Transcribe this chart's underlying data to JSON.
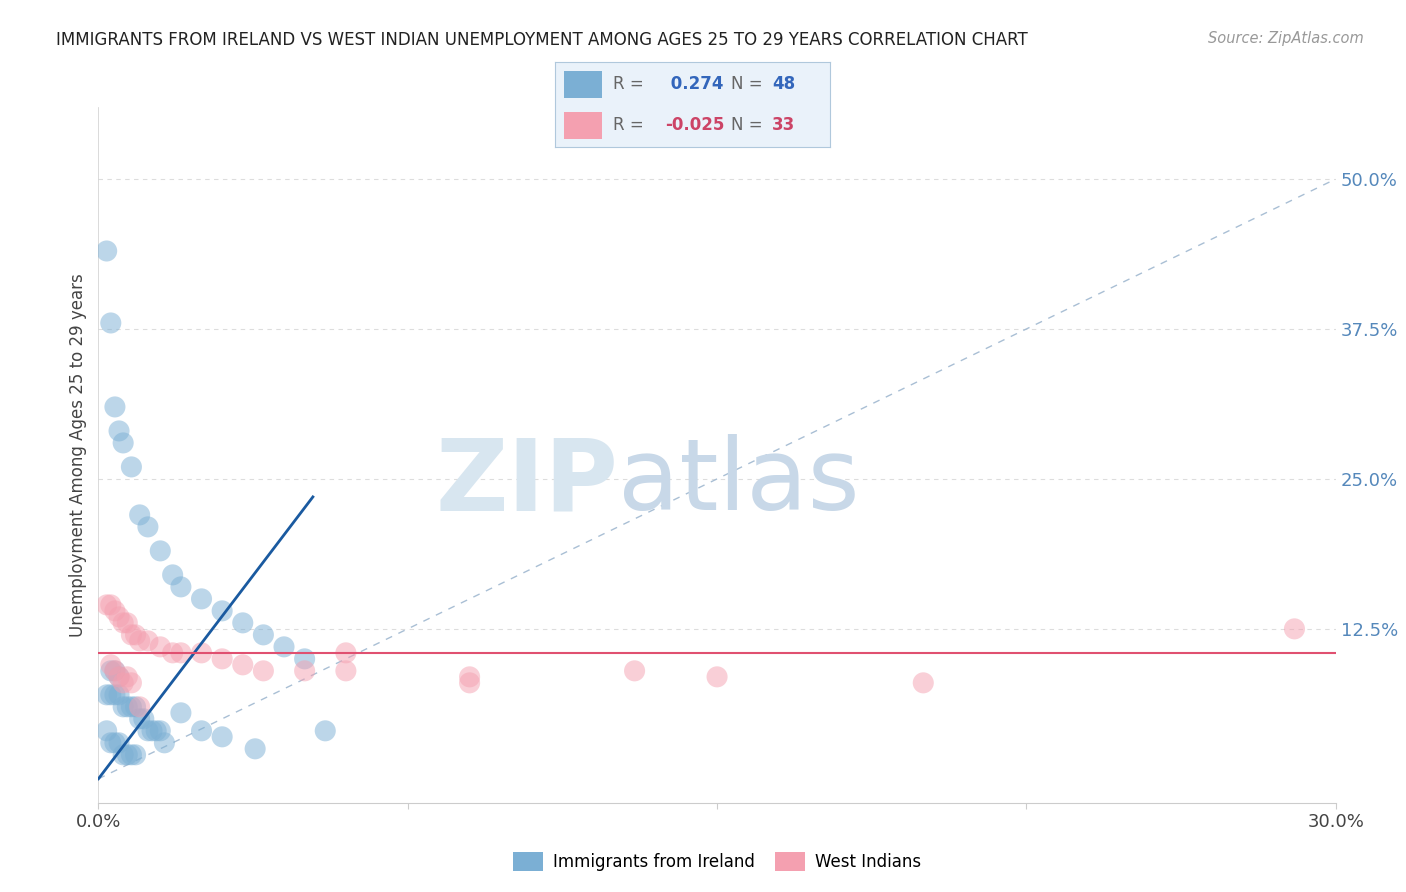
{
  "title": "IMMIGRANTS FROM IRELAND VS WEST INDIAN UNEMPLOYMENT AMONG AGES 25 TO 29 YEARS CORRELATION CHART",
  "source": "Source: ZipAtlas.com",
  "ylabel": "Unemployment Among Ages 25 to 29 years",
  "xlim": [
    0.0,
    0.3
  ],
  "ylim": [
    -0.02,
    0.56
  ],
  "ireland_R": 0.274,
  "ireland_N": 48,
  "westindian_R": -0.025,
  "westindian_N": 33,
  "ireland_color": "#7BAFD4",
  "westindian_color": "#F4A0B0",
  "ireland_line_color": "#1A5AA0",
  "westindian_line_color": "#E05070",
  "diagonal_line_color": "#A0B8D0",
  "watermark_zip_color": "#D8E6F0",
  "watermark_atlas_color": "#C8D8E8",
  "legend_box_color": "#EAF2FA",
  "legend_border_color": "#B0C8DC",
  "background_color": "#FFFFFF",
  "grid_color": "#DDDDDD",
  "right_tick_color": "#5588BB",
  "ireland_x": [
    0.002,
    0.003,
    0.004,
    0.005,
    0.006,
    0.008,
    0.01,
    0.012,
    0.015,
    0.018,
    0.02,
    0.025,
    0.03,
    0.035,
    0.04,
    0.045,
    0.05,
    0.002,
    0.003,
    0.004,
    0.005,
    0.006,
    0.007,
    0.008,
    0.009,
    0.01,
    0.011,
    0.012,
    0.013,
    0.014,
    0.015,
    0.016,
    0.002,
    0.003,
    0.004,
    0.005,
    0.006,
    0.007,
    0.008,
    0.009,
    0.003,
    0.004,
    0.005,
    0.02,
    0.025,
    0.03,
    0.038,
    0.055
  ],
  "ireland_y": [
    0.44,
    0.38,
    0.31,
    0.29,
    0.28,
    0.26,
    0.22,
    0.21,
    0.19,
    0.17,
    0.16,
    0.15,
    0.14,
    0.13,
    0.12,
    0.11,
    0.1,
    0.07,
    0.07,
    0.07,
    0.07,
    0.06,
    0.06,
    0.06,
    0.06,
    0.05,
    0.05,
    0.04,
    0.04,
    0.04,
    0.04,
    0.03,
    0.04,
    0.03,
    0.03,
    0.03,
    0.02,
    0.02,
    0.02,
    0.02,
    0.09,
    0.09,
    0.085,
    0.055,
    0.04,
    0.035,
    0.025,
    0.04
  ],
  "westindian_x": [
    0.002,
    0.003,
    0.004,
    0.005,
    0.006,
    0.007,
    0.008,
    0.009,
    0.01,
    0.012,
    0.015,
    0.018,
    0.02,
    0.025,
    0.03,
    0.035,
    0.04,
    0.05,
    0.06,
    0.09,
    0.13,
    0.15,
    0.2,
    0.003,
    0.004,
    0.005,
    0.006,
    0.007,
    0.008,
    0.06,
    0.09,
    0.29,
    0.01
  ],
  "westindian_y": [
    0.145,
    0.145,
    0.14,
    0.135,
    0.13,
    0.13,
    0.12,
    0.12,
    0.115,
    0.115,
    0.11,
    0.105,
    0.105,
    0.105,
    0.1,
    0.095,
    0.09,
    0.09,
    0.09,
    0.085,
    0.09,
    0.085,
    0.08,
    0.095,
    0.09,
    0.085,
    0.08,
    0.085,
    0.08,
    0.105,
    0.08,
    0.125,
    0.06
  ],
  "ireland_trendline": [
    [
      0.0,
      0.052
    ],
    [
      0.0,
      0.0
    ]
  ],
  "westindian_trendline_y": 0.105,
  "xtick_positions": [
    0.0,
    0.075,
    0.15,
    0.225,
    0.3
  ],
  "ytick_right_positions": [
    0.0,
    0.125,
    0.25,
    0.375,
    0.5
  ],
  "ytick_right_labels": [
    "",
    "12.5%",
    "25.0%",
    "37.5%",
    "50.0%"
  ]
}
